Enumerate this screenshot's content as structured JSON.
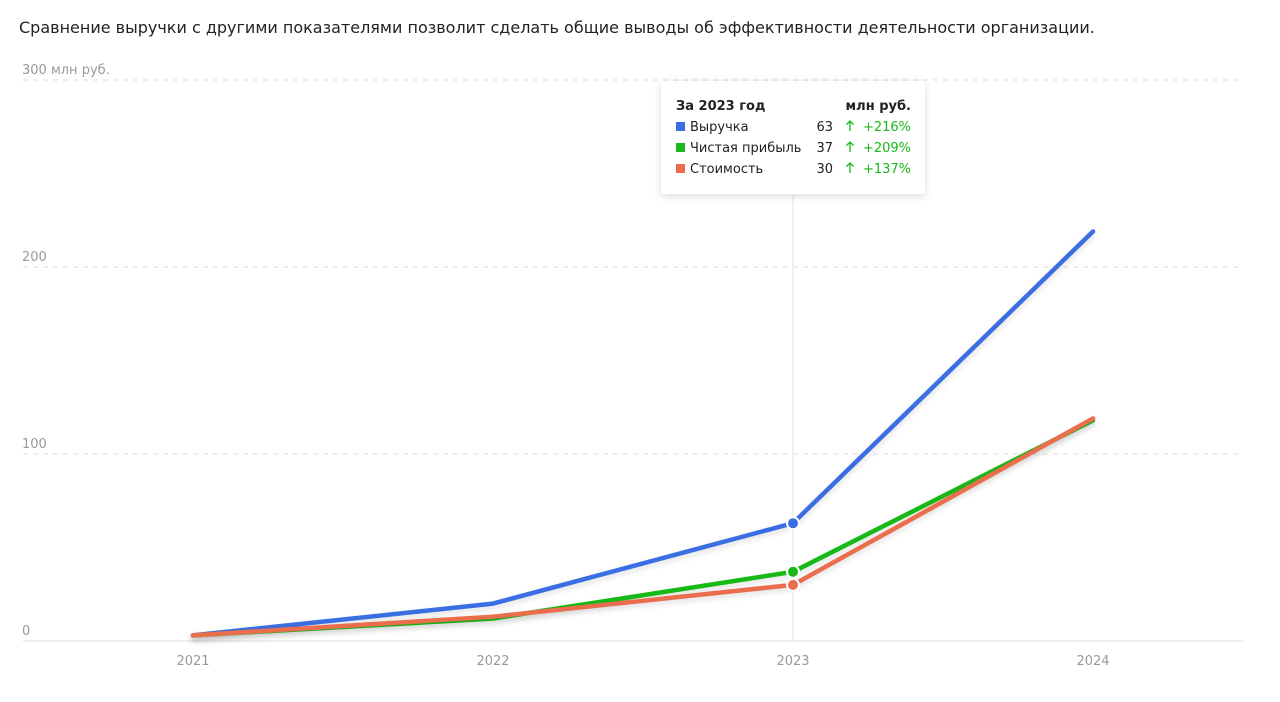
{
  "description": "Сравнение выручки с другими показателями позволит сделать общие выводы об эффективности деятельности организации.",
  "chart_data": {
    "type": "line",
    "categories": [
      "2021",
      "2022",
      "2023",
      "2024"
    ],
    "series": [
      {
        "name": "Выручка",
        "color": "#3a6ee3",
        "values": [
          3,
          20,
          63,
          219
        ]
      },
      {
        "name": "Чистая прибыль",
        "color": "#18b918",
        "values": [
          3,
          12,
          37,
          118
        ]
      },
      {
        "name": "Стоимость",
        "color": "#ea6e4e",
        "values": [
          3,
          13,
          30,
          119
        ]
      }
    ],
    "ylim": [
      0,
      300
    ],
    "yticks": [
      0,
      100,
      200,
      {
        "value": 300,
        "label": "300 млн руб."
      }
    ],
    "grid": true,
    "tooltip": {
      "title": "За 2023 год",
      "unit": "млн руб.",
      "changes": [
        "+216%",
        "+209%",
        "+137%"
      ]
    }
  }
}
